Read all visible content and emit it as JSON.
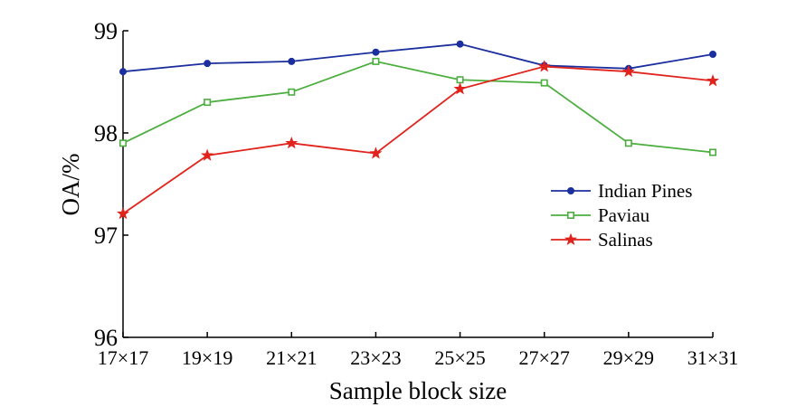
{
  "chart_data": {
    "type": "line",
    "xlabel": "Sample block size",
    "ylabel": "OA/%",
    "categories": [
      "17×17",
      "19×19",
      "21×21",
      "23×23",
      "25×25",
      "27×27",
      "29×29",
      "31×31"
    ],
    "ylim": [
      96,
      99
    ],
    "yticks": [
      "96",
      "97",
      "98",
      "99"
    ],
    "legend_position": "right",
    "series": [
      {
        "name": "Indian Pines",
        "color": "#1c2f9f",
        "marker": "circle",
        "values": [
          98.6,
          98.68,
          98.7,
          98.79,
          98.87,
          98.66,
          98.63,
          98.77
        ]
      },
      {
        "name": "Paviau",
        "color": "#4cae3f",
        "marker": "square",
        "values": [
          97.9,
          98.3,
          98.4,
          98.7,
          98.52,
          98.49,
          97.9,
          97.81
        ]
      },
      {
        "name": "Salinas",
        "color": "#e0231c",
        "marker": "star",
        "values": [
          97.21,
          97.78,
          97.9,
          97.8,
          98.43,
          98.65,
          98.6,
          98.51
        ]
      }
    ]
  }
}
